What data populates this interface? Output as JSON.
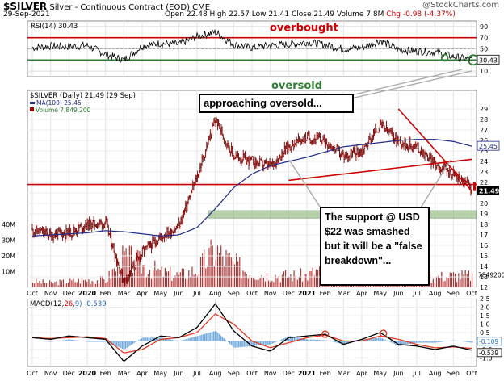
{
  "header": {
    "symbol": "$SILVER",
    "name": "Silver - Continuous Contract (EOD)",
    "exchange": "CME",
    "date": "29-Sep-2021",
    "open": "Open 22.48",
    "high": "High 22.57",
    "low": "Low 21.41",
    "close": "Close 21.49",
    "volume": "Volume 7.8M",
    "change": "Chg -0.98 (-4.37%)",
    "logo": "@StockCharts.com"
  },
  "colors": {
    "price_bars": "#7a0000",
    "ma_line": "#1f2a8a",
    "volume_bars": "#9a0000",
    "rsi_line": "#000000",
    "ref_line": "#cc0000",
    "oversold_line": "#2e7d32",
    "support_zone": "#7fb06a",
    "macd_line": "#000000",
    "signal_line": "#e03b24",
    "histogram": "#5b9bd5"
  },
  "chart_data": [
    {
      "type": "line",
      "panel": "rsi",
      "title": "RSI(14) 30.43",
      "last_value": "30.43",
      "ylim": [
        0,
        100
      ],
      "y_ticks": [
        "90",
        "70",
        "50",
        "30",
        "10"
      ],
      "reference_lines": [
        70,
        30
      ],
      "annotations": [
        "overbought",
        "oversold"
      ],
      "x_months": [
        "2019-10",
        "2019-11",
        "2019-12",
        "2020-01",
        "2020-02",
        "2020-03",
        "2020-04",
        "2020-05",
        "2020-06",
        "2020-07",
        "2020-08",
        "2020-09",
        "2020-10",
        "2020-11",
        "2020-12",
        "2021-01",
        "2021-02",
        "2021-03",
        "2021-04",
        "2021-05",
        "2021-06",
        "2021-07",
        "2021-08",
        "2021-09",
        "2021-10"
      ],
      "y": [
        52,
        55,
        54,
        56,
        40,
        30,
        55,
        60,
        58,
        72,
        80,
        58,
        52,
        56,
        58,
        62,
        57,
        50,
        52,
        65,
        48,
        46,
        44,
        36,
        30
      ]
    },
    {
      "type": "bar",
      "panel": "price",
      "title": "$SILVER (Daily) 21.49 (29 Sep)",
      "series": [
        {
          "name": "$SILVER (Daily) 21.49 (29 Sep)",
          "values": [
            17.5,
            17.0,
            17.2,
            18.0,
            18.2,
            12.5,
            15.3,
            16.8,
            17.8,
            22.5,
            28.0,
            24.5,
            24.0,
            23.5,
            25.5,
            26.3,
            26.0,
            24.5,
            25.0,
            27.5,
            26.0,
            25.4,
            23.8,
            22.8,
            21.49
          ]
        },
        {
          "name": "MA(100) 25.45",
          "values": [
            16.9,
            17.0,
            17.1,
            17.2,
            17.4,
            17.3,
            17.1,
            16.9,
            17.0,
            17.7,
            19.5,
            21.5,
            22.8,
            23.6,
            24.0,
            24.4,
            24.9,
            25.4,
            25.6,
            25.8,
            26.0,
            26.1,
            26.1,
            25.9,
            25.45
          ]
        }
      ],
      "x_months": [
        "2019-10",
        "2019-11",
        "2019-12",
        "2020-01",
        "2020-02",
        "2020-03",
        "2020-04",
        "2020-05",
        "2020-06",
        "2020-07",
        "2020-08",
        "2020-09",
        "2020-10",
        "2020-11",
        "2020-12",
        "2021-01",
        "2021-02",
        "2021-03",
        "2021-04",
        "2021-05",
        "2021-06",
        "2021-07",
        "2021-08",
        "2021-09",
        "2021-10"
      ],
      "ylim": [
        12,
        30
      ],
      "y_ticks": [
        "29",
        "28",
        "27",
        "26",
        "25",
        "24",
        "23",
        "22",
        "21",
        "20",
        "19",
        "18",
        "17",
        "16",
        "15",
        "14",
        "13",
        "12"
      ],
      "last_price_label": "21.49",
      "ma_label": "25.45",
      "horizontal_support": 21.8,
      "support_zone": [
        18.6,
        19.3
      ],
      "trendlines": [
        {
          "from": [
            "2020-12",
            22.2
          ],
          "to": [
            "2021-10",
            24.2
          ]
        },
        {
          "from": [
            "2021-06",
            29.0
          ],
          "to": [
            "2021-10",
            21.2
          ]
        }
      ]
    },
    {
      "type": "bar",
      "panel": "volume",
      "title": "Volume 7,849,200",
      "y_ticks": [
        "40M",
        "30M",
        "20M",
        "10M"
      ],
      "last_value": "7849200",
      "values": [
        4,
        3,
        4,
        5,
        5,
        20,
        15,
        10,
        8,
        12,
        25,
        15,
        10,
        8,
        8,
        8,
        14,
        8,
        7,
        9,
        7,
        6,
        7,
        8,
        7.8
      ]
    },
    {
      "type": "line",
      "panel": "macd",
      "title": "MACD(12,26,9) -0.539, -0.430, -0.109",
      "series": [
        {
          "name": "MACD(12,26,9)",
          "values": [
            0.2,
            0.1,
            0.3,
            0.2,
            0.1,
            -1.2,
            -0.3,
            0.3,
            0.2,
            0.8,
            2.2,
            0.6,
            -0.3,
            -0.6,
            0.2,
            0.3,
            0.4,
            -0.2,
            0.1,
            0.5,
            -0.2,
            -0.3,
            -0.5,
            -0.3,
            -0.539
          ]
        },
        {
          "name": "Signal",
          "values": [
            0.2,
            0.15,
            0.2,
            0.25,
            0.15,
            -0.7,
            -0.5,
            0.1,
            0.2,
            0.5,
            1.6,
            1.0,
            0.0,
            -0.4,
            -0.1,
            0.2,
            0.35,
            0.0,
            0.0,
            0.3,
            0.1,
            -0.2,
            -0.4,
            -0.35,
            -0.43
          ]
        },
        {
          "name": "Histogram",
          "values": [
            0,
            -0.05,
            0.1,
            -0.05,
            -0.05,
            -0.5,
            0.2,
            0.2,
            0.0,
            0.3,
            0.6,
            -0.4,
            -0.3,
            -0.2,
            0.3,
            0.1,
            0.05,
            -0.2,
            0.1,
            0.2,
            -0.3,
            -0.1,
            -0.1,
            0.05,
            -0.109
          ]
        }
      ],
      "ylim": [
        -1.5,
        2.5
      ],
      "y_ticks": [
        "2.5",
        "2.0",
        "1.5",
        "1.0",
        "0.5",
        "0.0",
        "-0.5",
        "-1.0"
      ],
      "last_labels": [
        "-0.109",
        "-0.539"
      ]
    }
  ],
  "x_axis_labels": [
    "Oct",
    "Nov",
    "Dec",
    "2020",
    "Feb",
    "Mar",
    "Apr",
    "May",
    "Jun",
    "Jul",
    "Aug",
    "Sep",
    "Oct",
    "Nov",
    "Dec",
    "2021",
    "Feb",
    "Mar",
    "Apr",
    "May",
    "Jun",
    "Jul",
    "Aug",
    "Sep",
    "Oct"
  ],
  "callouts": {
    "approaching": "approaching oversold...",
    "support": "The support @ USD $22 was smashed but it will be a \"false breakdown\"..."
  }
}
